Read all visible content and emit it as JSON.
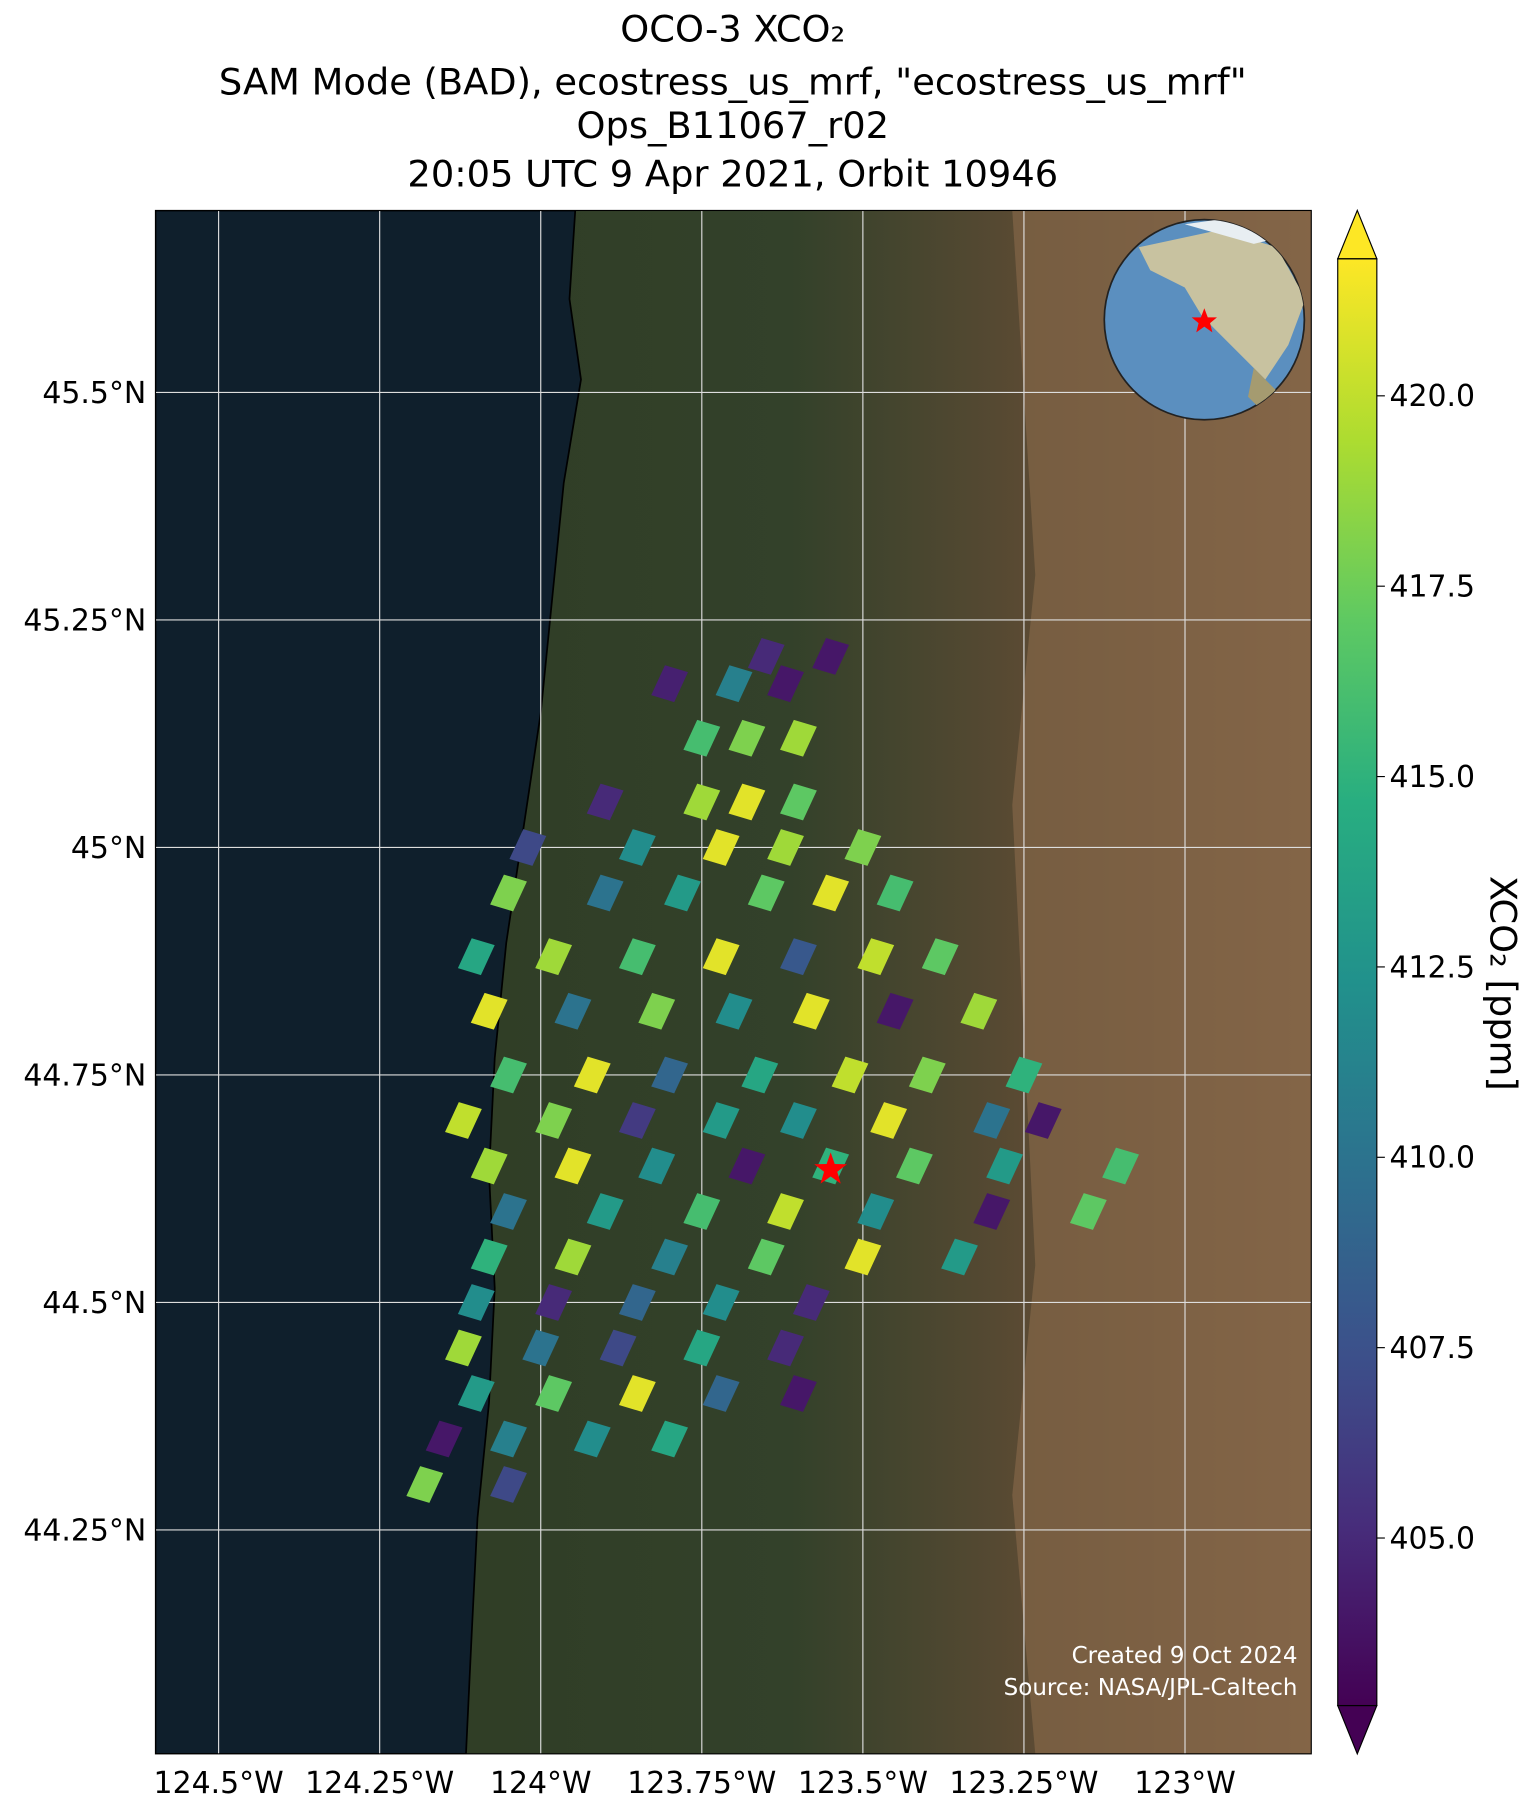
{
  "chart_data": {
    "type": "map",
    "title": [
      "OCO-3 XCO₂",
      "SAM Mode (BAD), ecostress_us_mrf, \"ecostress_us_mrf\"",
      "Ops_B11067_r02",
      "20:05 UTC 9 Apr 2021, Orbit 10946"
    ],
    "xlim": [
      -124.598,
      -122.804
    ],
    "ylim": [
      44.004,
      45.7
    ],
    "xticks": [
      {
        "value": -124.5,
        "label": "124.5°W"
      },
      {
        "value": -124.25,
        "label": "124.25°W"
      },
      {
        "value": -124,
        "label": "124°W"
      },
      {
        "value": -123.75,
        "label": "123.75°W"
      },
      {
        "value": -123.5,
        "label": "123.5°W"
      },
      {
        "value": -123.25,
        "label": "123.25°W"
      },
      {
        "value": -123,
        "label": "123°W"
      }
    ],
    "yticks": [
      {
        "value": 45.5,
        "label": "45.5°N"
      },
      {
        "value": 45.25,
        "label": "45.25°N"
      },
      {
        "value": 45,
        "label": "45°N"
      },
      {
        "value": 44.75,
        "label": "44.75°N"
      },
      {
        "value": 44.5,
        "label": "44.5°N"
      },
      {
        "value": 44.25,
        "label": "44.25°N"
      }
    ],
    "grid": true,
    "colorbar_label": "XCO₂ [ppm]",
    "clim": [
      402.8,
      421.8
    ],
    "cticks": [
      {
        "value": 405,
        "label": "405.0"
      },
      {
        "value": 407.5,
        "label": "407.5"
      },
      {
        "value": 410,
        "label": "410.0"
      },
      {
        "value": 412.5,
        "label": "412.5"
      },
      {
        "value": 415,
        "label": "415.0"
      },
      {
        "value": 417.5,
        "label": "417.5"
      },
      {
        "value": 420,
        "label": "420.0"
      }
    ],
    "target": {
      "lon": -123.55,
      "lat": 44.646
    },
    "credits": [
      "Created 9 Oct 2024",
      "Source: NASA/JPL-Caltech"
    ],
    "lon": [
      -123.65,
      -123.55,
      -123.8,
      -123.7,
      -123.62,
      -123.75,
      -123.68,
      -123.6,
      -123.9,
      -123.75,
      -123.68,
      -123.6,
      -124.02,
      -123.85,
      -123.72,
      -123.62,
      -123.5,
      -124.05,
      -123.9,
      -123.78,
      -123.65,
      -123.55,
      -123.45,
      -124.1,
      -123.98,
      -123.85,
      -123.72,
      -123.6,
      -123.48,
      -123.38,
      -124.08,
      -123.95,
      -123.82,
      -123.7,
      -123.58,
      -123.45,
      -123.32,
      -124.05,
      -123.92,
      -123.8,
      -123.66,
      -123.52,
      -123.4,
      -123.25,
      -124.12,
      -123.98,
      -123.85,
      -123.72,
      -123.6,
      -123.46,
      -123.3,
      -123.22,
      -124.08,
      -123.95,
      -123.82,
      -123.68,
      -123.55,
      -123.42,
      -123.28,
      -123.1,
      -124.05,
      -123.9,
      -123.75,
      -123.62,
      -123.48,
      -123.3,
      -123.15,
      -124.08,
      -123.95,
      -123.8,
      -123.65,
      -123.5,
      -123.35,
      -124.1,
      -123.98,
      -123.85,
      -123.72,
      -123.58,
      -124.12,
      -124.0,
      -123.88,
      -123.75,
      -123.62,
      -124.1,
      -123.98,
      -123.85,
      -123.72,
      -123.6,
      -124.15,
      -124.05,
      -123.92,
      -123.8,
      -124.18,
      -124.05
    ],
    "lat": [
      45.21,
      45.21,
      45.18,
      45.18,
      45.18,
      45.12,
      45.12,
      45.12,
      45.05,
      45.05,
      45.05,
      45.05,
      45.0,
      45.0,
      45.0,
      45.0,
      45.0,
      44.95,
      44.95,
      44.95,
      44.95,
      44.95,
      44.95,
      44.88,
      44.88,
      44.88,
      44.88,
      44.88,
      44.88,
      44.88,
      44.82,
      44.82,
      44.82,
      44.82,
      44.82,
      44.82,
      44.82,
      44.75,
      44.75,
      44.75,
      44.75,
      44.75,
      44.75,
      44.75,
      44.7,
      44.7,
      44.7,
      44.7,
      44.7,
      44.7,
      44.7,
      44.7,
      44.65,
      44.65,
      44.65,
      44.65,
      44.65,
      44.65,
      44.65,
      44.65,
      44.6,
      44.6,
      44.6,
      44.6,
      44.6,
      44.6,
      44.6,
      44.55,
      44.55,
      44.55,
      44.55,
      44.55,
      44.55,
      44.5,
      44.5,
      44.5,
      44.5,
      44.5,
      44.45,
      44.45,
      44.45,
      44.45,
      44.45,
      44.4,
      44.4,
      44.4,
      44.4,
      44.4,
      44.35,
      44.35,
      44.35,
      44.35,
      44.3,
      44.3
    ],
    "values": [
      405,
      404,
      404.5,
      411,
      404,
      416,
      418,
      419,
      405,
      419,
      421,
      417,
      407,
      412,
      421,
      419,
      418,
      418,
      410,
      413,
      417,
      421,
      416,
      414,
      419,
      416,
      421,
      408,
      420,
      417,
      421,
      410,
      418,
      412,
      421,
      404,
      419,
      416,
      421,
      409,
      414,
      420,
      418,
      415,
      420,
      418,
      406,
      413,
      412,
      421,
      410,
      404,
      419,
      421,
      412,
      404,
      415,
      417,
      413,
      416,
      410,
      413,
      416,
      420,
      412,
      404,
      417,
      415,
      419,
      411,
      417,
      421,
      413,
      412,
      405,
      409,
      412,
      405,
      419,
      410,
      407,
      414,
      405,
      413,
      417,
      421,
      409,
      404,
      404,
      411,
      412,
      414,
      418,
      407
    ]
  }
}
